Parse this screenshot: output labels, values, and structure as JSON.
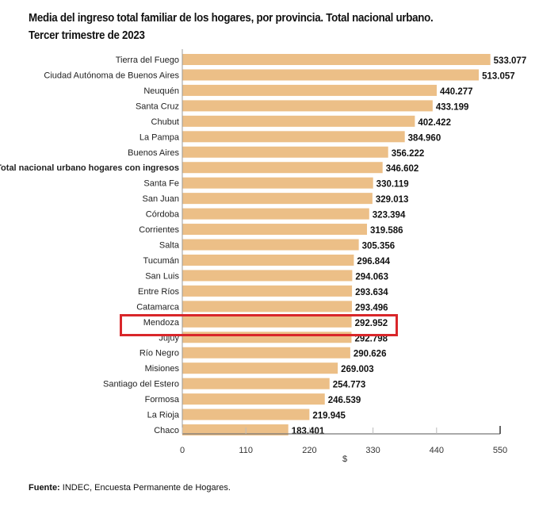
{
  "chart_data": {
    "type": "bar",
    "orientation": "horizontal",
    "title": "Media del ingreso total familiar de los hogares, por provincia. Total nacional urbano.",
    "subtitle": "Tercer trimestre de 2023",
    "xlabel": "$",
    "ylabel": "",
    "xlim": [
      0,
      550
    ],
    "xticks": [
      "0",
      "110",
      "220",
      "330",
      "440",
      "550"
    ],
    "bar_color": "#ecbf87",
    "highlight_color": "#d9262a",
    "highlighted_category": "Mendoza",
    "bold_category": "Total nacional urbano hogares con ingresos",
    "categories": [
      "Tierra del Fuego",
      "Ciudad Autónoma de Buenos Aires",
      "Neuquén",
      "Santa Cruz",
      "Chubut",
      "La Pampa",
      "Buenos Aires",
      "Total nacional urbano hogares con ingresos",
      "Santa Fe",
      "San Juan",
      "Córdoba",
      "Corrientes",
      "Salta",
      "Tucumán",
      "San Luis",
      "Entre Ríos",
      "Catamarca",
      "Mendoza",
      "Jujuy",
      "Río Negro",
      "Misiones",
      "Santiago del Estero",
      "Formosa",
      "La Rioja",
      "Chaco"
    ],
    "values": [
      533.077,
      513.057,
      440.277,
      433.199,
      402.422,
      384.96,
      356.222,
      346.602,
      330.119,
      329.013,
      323.394,
      319.586,
      305.356,
      296.844,
      294.063,
      293.634,
      293.496,
      292.952,
      292.798,
      290.626,
      269.003,
      254.773,
      246.539,
      219.945,
      183.401
    ],
    "value_labels": [
      "533.077",
      "513.057",
      "440.277",
      "433.199",
      "402.422",
      "384.960",
      "356.222",
      "346.602",
      "330.119",
      "329.013",
      "323.394",
      "319.586",
      "305.356",
      "296.844",
      "294.063",
      "293.634",
      "293.496",
      "292.952",
      "292.798",
      "290.626",
      "269.003",
      "254.773",
      "246.539",
      "219.945",
      "183.401"
    ],
    "grid": false
  },
  "footer": {
    "source_label": "Fuente:",
    "source_text": " INDEC, Encuesta Permanente de Hogares."
  }
}
